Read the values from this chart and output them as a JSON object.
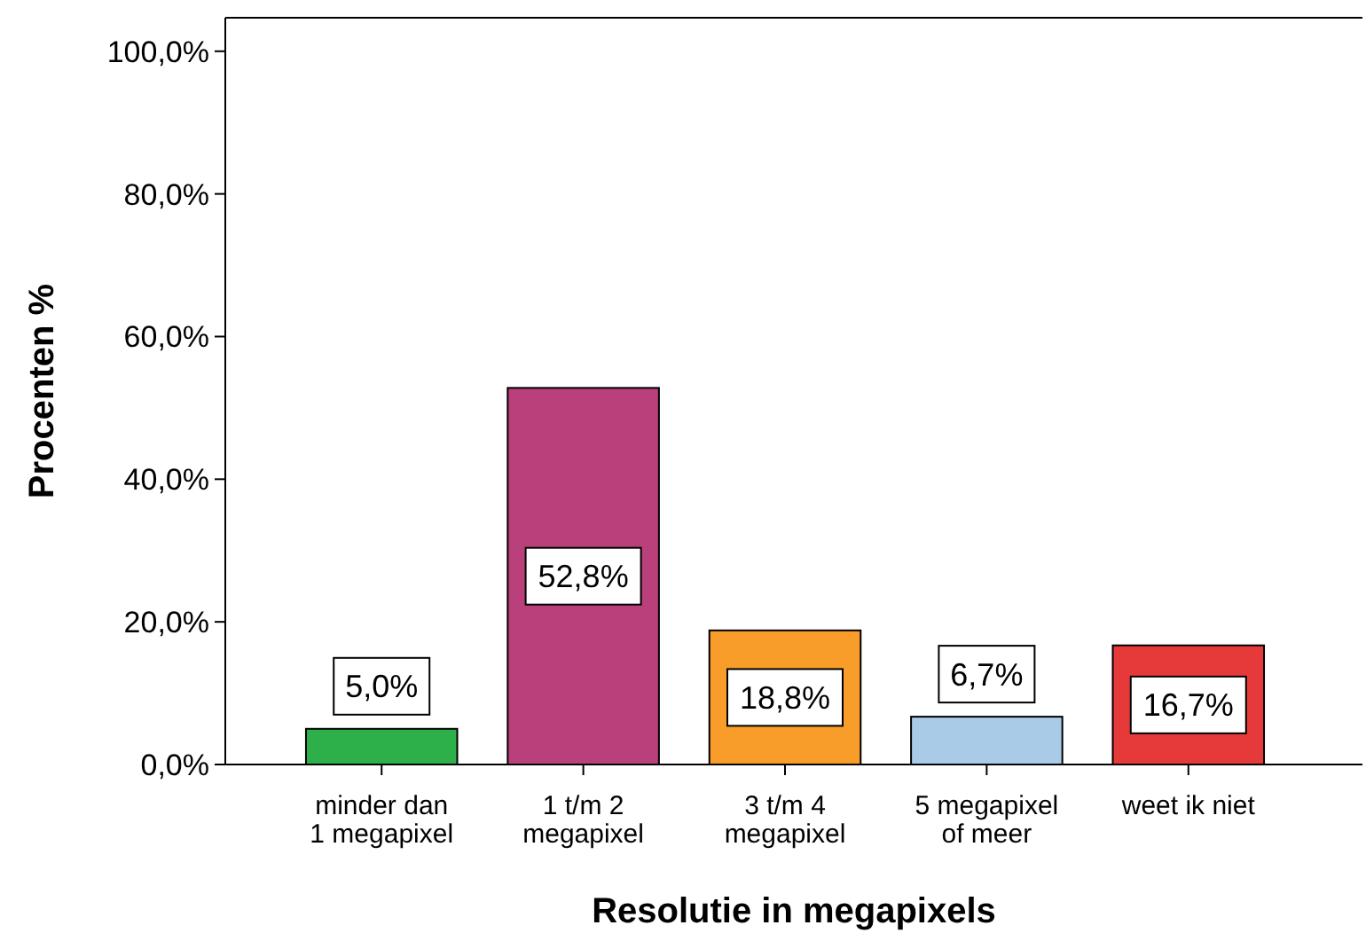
{
  "chart_data": {
    "type": "bar",
    "xlabel": "Resolutie in megapixels",
    "ylabel": "Procenten %",
    "categories": [
      "minder dan\n1 megapixel",
      "1 t/m 2\nmegapixel",
      "3 t/m 4\nmegapixel",
      "5 megapixel\nof meer",
      "weet ik niet"
    ],
    "values": [
      5.0,
      52.8,
      18.8,
      6.7,
      16.7
    ],
    "colors": [
      "#2db04a",
      "#b9407a",
      "#f89c2a",
      "#a9cbe8",
      "#e63a3a"
    ],
    "value_labels": [
      "5,0%",
      "52,8%",
      "18,8%",
      "6,7%",
      "16,7%"
    ],
    "ylim": [
      0,
      104.7
    ],
    "yticks": [
      {
        "value": 0,
        "label": "0,0%"
      },
      {
        "value": 20,
        "label": "20,0%"
      },
      {
        "value": 40,
        "label": "40,0%"
      },
      {
        "value": 60,
        "label": "60,0%"
      },
      {
        "value": 80,
        "label": "80,0%"
      },
      {
        "value": 100,
        "label": "100,0%"
      }
    ],
    "grid": false
  }
}
